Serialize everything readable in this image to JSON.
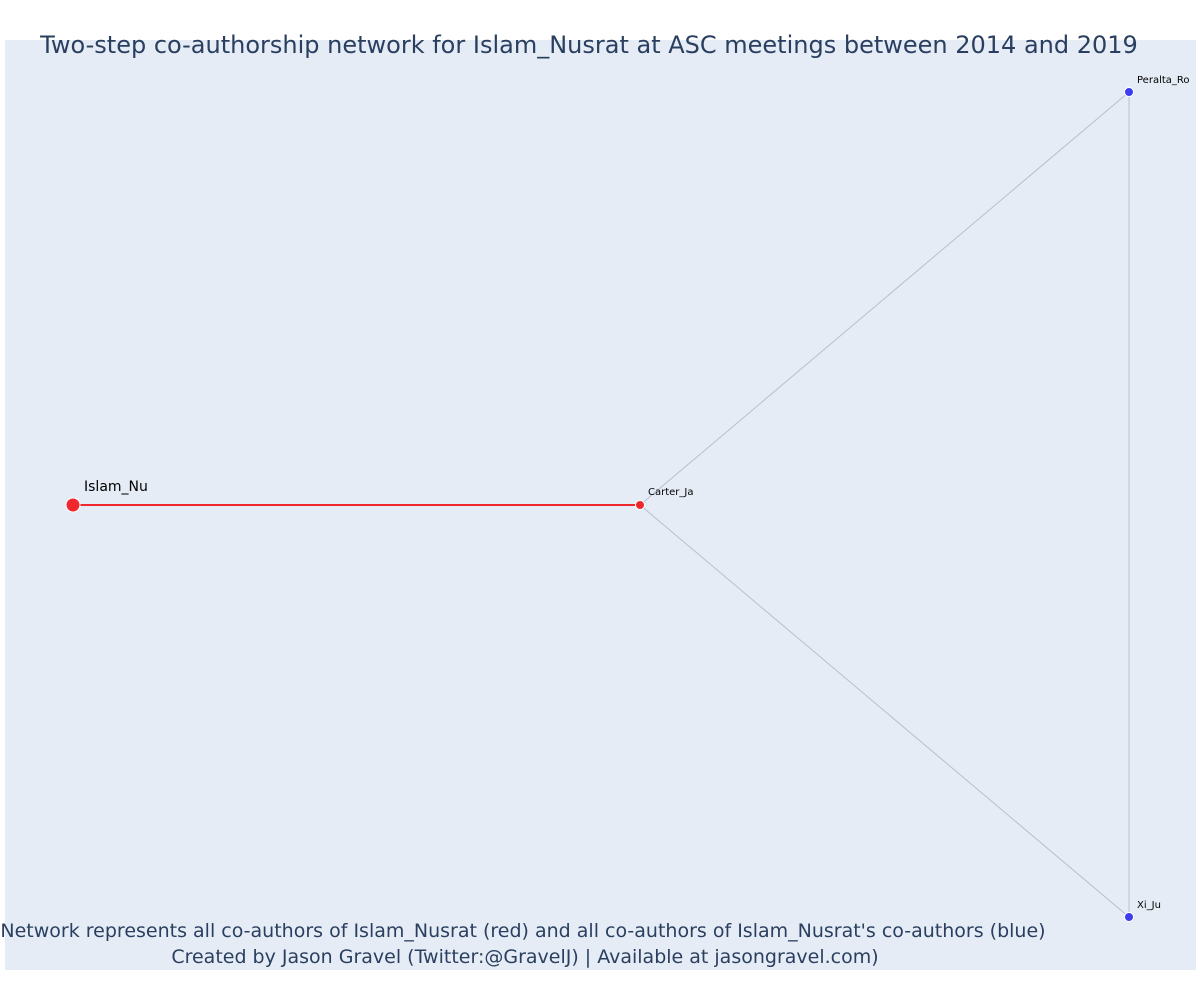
{
  "title": "Two-step co-authorship network for Islam_Nusrat at ASC meetings between 2014 and 2019",
  "caption_line1": "Network represents all co-authors of Islam_Nusrat (red) and all co-authors of Islam_Nusrat's co-authors (blue)",
  "caption_line2": "Created by Jason Gravel (Twitter:@GravelJ) | Available at jasongravel.com)",
  "colors": {
    "plot_background": "#e5ecf6",
    "focal_red": "#f0282d",
    "coauthor_blue": "#3c3cf0",
    "edge_gray": "#bcbcd0",
    "text": "#2a3f5f"
  },
  "nodes": [
    {
      "id": "islam",
      "label": "Islam_Nu",
      "group": "focal"
    },
    {
      "id": "carter",
      "label": "Carter_Ja",
      "group": "first-step"
    },
    {
      "id": "peralta",
      "label": "Peralta_Ro",
      "group": "second-step"
    },
    {
      "id": "xi",
      "label": "Xi_Ju",
      "group": "second-step"
    }
  ],
  "edges": [
    {
      "source": "islam",
      "target": "carter",
      "type": "focal"
    },
    {
      "source": "carter",
      "target": "peralta",
      "type": "other"
    },
    {
      "source": "carter",
      "target": "xi",
      "type": "other"
    },
    {
      "source": "peralta",
      "target": "xi",
      "type": "other"
    }
  ]
}
